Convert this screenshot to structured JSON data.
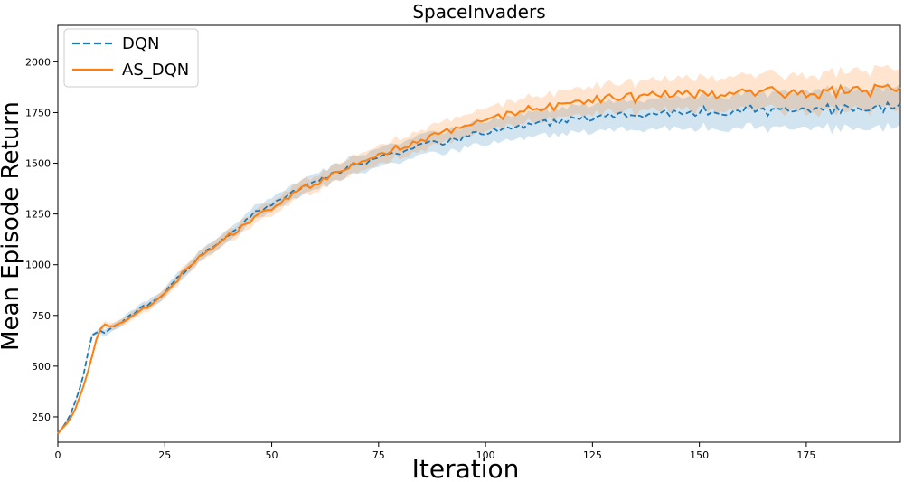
{
  "chart_data": {
    "type": "line",
    "title": "SpaceInvaders",
    "xlabel": "Iteration",
    "ylabel": "Mean Episode Return",
    "xlim": [
      0,
      197
    ],
    "ylim": [
      125,
      2180
    ],
    "xticks": [
      0,
      25,
      50,
      75,
      100,
      125,
      150,
      175
    ],
    "yticks": [
      250,
      500,
      750,
      1000,
      1250,
      1500,
      1750,
      2000
    ],
    "grid": false,
    "legend_position": "top-left",
    "series": [
      {
        "name": "DQN",
        "color": "#1f77b4",
        "line_style": "dashed",
        "shaded_band": true,
        "anchors": [
          [
            0,
            170
          ],
          [
            1,
            195
          ],
          [
            2,
            225
          ],
          [
            3,
            265
          ],
          [
            4,
            320
          ],
          [
            5,
            380
          ],
          [
            6,
            460
          ],
          [
            7,
            560
          ],
          [
            8,
            655
          ],
          [
            9,
            662
          ],
          [
            10,
            672
          ],
          [
            11,
            670
          ],
          [
            12,
            678
          ],
          [
            13,
            690
          ],
          [
            14,
            705
          ],
          [
            15,
            720
          ],
          [
            16,
            735
          ],
          [
            17,
            750
          ],
          [
            18,
            765
          ],
          [
            19,
            780
          ],
          [
            20,
            800
          ],
          [
            22,
            815
          ],
          [
            24,
            845
          ],
          [
            26,
            890
          ],
          [
            28,
            935
          ],
          [
            30,
            975
          ],
          [
            33,
            1035
          ],
          [
            36,
            1085
          ],
          [
            40,
            1150
          ],
          [
            43,
            1200
          ],
          [
            46,
            1250
          ],
          [
            50,
            1300
          ],
          [
            55,
            1360
          ],
          [
            60,
            1410
          ],
          [
            65,
            1455
          ],
          [
            70,
            1495
          ],
          [
            75,
            1530
          ],
          [
            80,
            1560
          ],
          [
            85,
            1590
          ],
          [
            90,
            1610
          ],
          [
            95,
            1630
          ],
          [
            100,
            1655
          ],
          [
            105,
            1670
          ],
          [
            110,
            1690
          ],
          [
            115,
            1700
          ],
          [
            120,
            1715
          ],
          [
            125,
            1725
          ],
          [
            130,
            1735
          ],
          [
            135,
            1740
          ],
          [
            140,
            1745
          ],
          [
            145,
            1750
          ],
          [
            150,
            1752
          ],
          [
            155,
            1755
          ],
          [
            160,
            1758
          ],
          [
            165,
            1760
          ],
          [
            170,
            1762
          ],
          [
            175,
            1764
          ],
          [
            180,
            1766
          ],
          [
            185,
            1768
          ],
          [
            190,
            1770
          ],
          [
            197,
            1775
          ]
        ]
      },
      {
        "name": "AS_DQN",
        "color": "#ff7f0e",
        "line_style": "solid",
        "shaded_band": true,
        "anchors": [
          [
            0,
            165
          ],
          [
            1,
            190
          ],
          [
            2,
            215
          ],
          [
            3,
            245
          ],
          [
            4,
            285
          ],
          [
            5,
            340
          ],
          [
            6,
            400
          ],
          [
            7,
            470
          ],
          [
            8,
            550
          ],
          [
            9,
            630
          ],
          [
            10,
            690
          ],
          [
            11,
            705
          ],
          [
            12,
            700
          ],
          [
            13,
            695
          ],
          [
            14,
            700
          ],
          [
            15,
            710
          ],
          [
            16,
            725
          ],
          [
            17,
            740
          ],
          [
            18,
            755
          ],
          [
            19,
            770
          ],
          [
            20,
            785
          ],
          [
            22,
            810
          ],
          [
            24,
            840
          ],
          [
            26,
            885
          ],
          [
            28,
            930
          ],
          [
            30,
            975
          ],
          [
            33,
            1035
          ],
          [
            36,
            1085
          ],
          [
            40,
            1140
          ],
          [
            43,
            1190
          ],
          [
            46,
            1235
          ],
          [
            50,
            1285
          ],
          [
            55,
            1345
          ],
          [
            60,
            1400
          ],
          [
            65,
            1450
          ],
          [
            70,
            1495
          ],
          [
            75,
            1540
          ],
          [
            80,
            1580
          ],
          [
            85,
            1615
          ],
          [
            90,
            1650
          ],
          [
            95,
            1680
          ],
          [
            100,
            1710
          ],
          [
            105,
            1740
          ],
          [
            110,
            1765
          ],
          [
            115,
            1780
          ],
          [
            120,
            1795
          ],
          [
            125,
            1810
          ],
          [
            130,
            1820
          ],
          [
            135,
            1825
          ],
          [
            140,
            1830
          ],
          [
            145,
            1835
          ],
          [
            150,
            1840
          ],
          [
            155,
            1850
          ],
          [
            160,
            1860
          ],
          [
            165,
            1850
          ],
          [
            170,
            1845
          ],
          [
            175,
            1845
          ],
          [
            180,
            1850
          ],
          [
            185,
            1855
          ],
          [
            190,
            1860
          ],
          [
            197,
            1870
          ]
        ]
      }
    ]
  }
}
